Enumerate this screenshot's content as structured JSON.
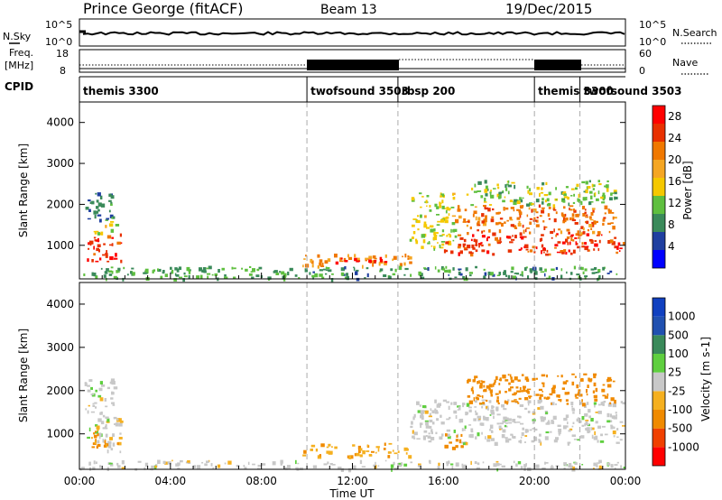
{
  "header": {
    "title": "Prince George (fitACF)",
    "beam": "Beam 13",
    "date": "19/Dec/2015"
  },
  "noise_panel": {
    "left_label": "N.Sky",
    "right_label": "N.Search",
    "left_ticks": [
      "10^5",
      "10^0"
    ],
    "right_ticks": [
      "10^5",
      "10^0"
    ]
  },
  "freq_panel": {
    "left_label_1": "Freq.",
    "left_label_2": "[MHz]",
    "right_label": "Nave",
    "left_ticks": [
      "18",
      "8"
    ],
    "right_ticks": [
      "60",
      "0"
    ]
  },
  "cpid": {
    "label": "CPID",
    "segments": [
      {
        "name": "themis 3300",
        "start_hour": 0
      },
      {
        "name": "twofsound 3503",
        "start_hour": 10
      },
      {
        "name": "rbsp 200",
        "start_hour": 14
      },
      {
        "name": "themis 3300",
        "start_hour": 20
      },
      {
        "name": "twofsound 3503",
        "start_hour": 22
      }
    ]
  },
  "colors": {
    "power": [
      "#0000ff",
      "#1f3fa0",
      "#3a8a5a",
      "#5fbf3f",
      "#f5c800",
      "#f5a623",
      "#f07800",
      "#e83000",
      "#ff0000"
    ],
    "velocity": [
      "#ff0000",
      "#f04000",
      "#f08a00",
      "#f5b020",
      "#c8c8c8",
      "#5fcf3f",
      "#3a8a5a",
      "#2050b0",
      "#1040c0"
    ]
  },
  "chart_data": [
    {
      "type": "heatmap",
      "name": "power",
      "xlabel": "",
      "ylabel": "Slant Range [km]",
      "xlim_hours": [
        0,
        24
      ],
      "ylim": [
        180,
        4500
      ],
      "yticks": [
        1000,
        2000,
        3000,
        4000
      ],
      "dashed_vlines_hours": [
        10,
        14,
        20,
        22
      ],
      "colorbar": {
        "label": "Power [dB]",
        "ticks": [
          "28",
          "24",
          "20",
          "16",
          "12",
          "8",
          "4"
        ],
        "range": [
          0,
          30
        ]
      },
      "regions": [
        {
          "t0": 0.3,
          "t1": 1.8,
          "r0": 600,
          "r1": 1300,
          "level": 26
        },
        {
          "t0": 0.5,
          "t1": 1.6,
          "r0": 1300,
          "r1": 1600,
          "level": 14
        },
        {
          "t0": 0.2,
          "t1": 1.5,
          "r0": 1600,
          "r1": 2300,
          "level": 8
        },
        {
          "t0": 0.0,
          "t1": 10.0,
          "r0": 200,
          "r1": 500,
          "level": 10
        },
        {
          "t0": 9.8,
          "t1": 14.5,
          "r0": 500,
          "r1": 800,
          "level": 20
        },
        {
          "t0": 11.0,
          "t1": 13.5,
          "r0": 600,
          "r1": 750,
          "level": 27
        },
        {
          "t0": 14.5,
          "t1": 16.5,
          "r0": 900,
          "r1": 2300,
          "level": 14
        },
        {
          "t0": 16.0,
          "t1": 24.0,
          "r0": 800,
          "r1": 1300,
          "level": 25
        },
        {
          "t0": 16.5,
          "t1": 23.5,
          "r0": 1300,
          "r1": 2000,
          "level": 22
        },
        {
          "t0": 17.0,
          "t1": 23.5,
          "r0": 2000,
          "r1": 2600,
          "level": 12
        },
        {
          "t0": 10.0,
          "t1": 24.0,
          "r0": 200,
          "r1": 500,
          "level": 9
        }
      ]
    },
    {
      "type": "heatmap",
      "name": "velocity",
      "xlabel": "Time UT",
      "ylabel": "Slant Range [km]",
      "xlim_hours": [
        0,
        24
      ],
      "xticks": [
        "00:00",
        "04:00",
        "08:00",
        "12:00",
        "16:00",
        "20:00",
        "00:00"
      ],
      "ylim": [
        180,
        4500
      ],
      "yticks": [
        1000,
        2000,
        3000,
        4000
      ],
      "dashed_vlines_hours": [
        10,
        14,
        20,
        22
      ],
      "colorbar": {
        "label": "Velocity [m s-1]",
        "ticks": [
          "1000",
          "500",
          "100",
          "25",
          "-25",
          "-100",
          "-500",
          "-1000"
        ],
        "range": [
          -1000,
          1000
        ]
      },
      "regions": [
        {
          "t0": 0.3,
          "t1": 1.8,
          "r0": 600,
          "r1": 1400,
          "level": 0
        },
        {
          "t0": 0.5,
          "t1": 1.8,
          "r0": 700,
          "r1": 1100,
          "level": -120
        },
        {
          "t0": 0.2,
          "t1": 1.5,
          "r0": 1400,
          "r1": 2300,
          "level": 0
        },
        {
          "t0": 9.8,
          "t1": 14.5,
          "r0": 500,
          "r1": 800,
          "level": -90
        },
        {
          "t0": 14.5,
          "t1": 24.0,
          "r0": 800,
          "r1": 1800,
          "level": 0
        },
        {
          "t0": 16.0,
          "t1": 16.8,
          "r0": 700,
          "r1": 1100,
          "level": -200
        },
        {
          "t0": 17.0,
          "t1": 23.5,
          "r0": 1700,
          "r1": 2400,
          "level": -400
        },
        {
          "t0": 0.0,
          "t1": 24.0,
          "r0": 200,
          "r1": 400,
          "level": 0
        }
      ]
    }
  ]
}
